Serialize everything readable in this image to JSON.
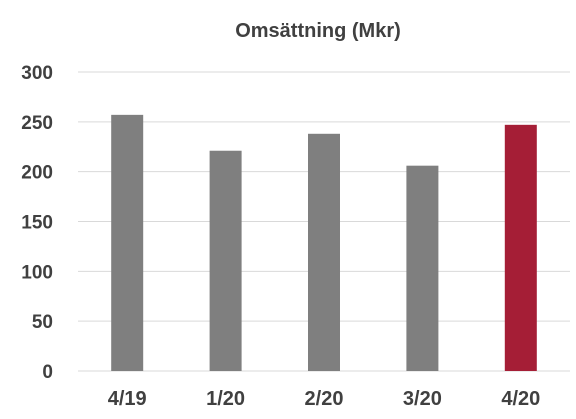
{
  "chart_data": {
    "type": "bar",
    "title": "Omsättning (Mkr)",
    "categories": [
      "4/19",
      "1/20",
      "2/20",
      "3/20",
      "4/20"
    ],
    "series": [
      {
        "values": [
          257,
          221,
          238,
          206,
          247
        ]
      }
    ],
    "ylim": [
      0,
      300
    ],
    "yticks": [
      0,
      50,
      100,
      150,
      200,
      250,
      300
    ],
    "xlabel": "",
    "ylabel": "",
    "grid": true,
    "legend": "none",
    "colors": {
      "default_bar": "#7f7f7f",
      "highlight_bar": "#a51e36",
      "gridline": "#d9d9d9",
      "text": "#404040"
    },
    "highlight_index": 4
  }
}
